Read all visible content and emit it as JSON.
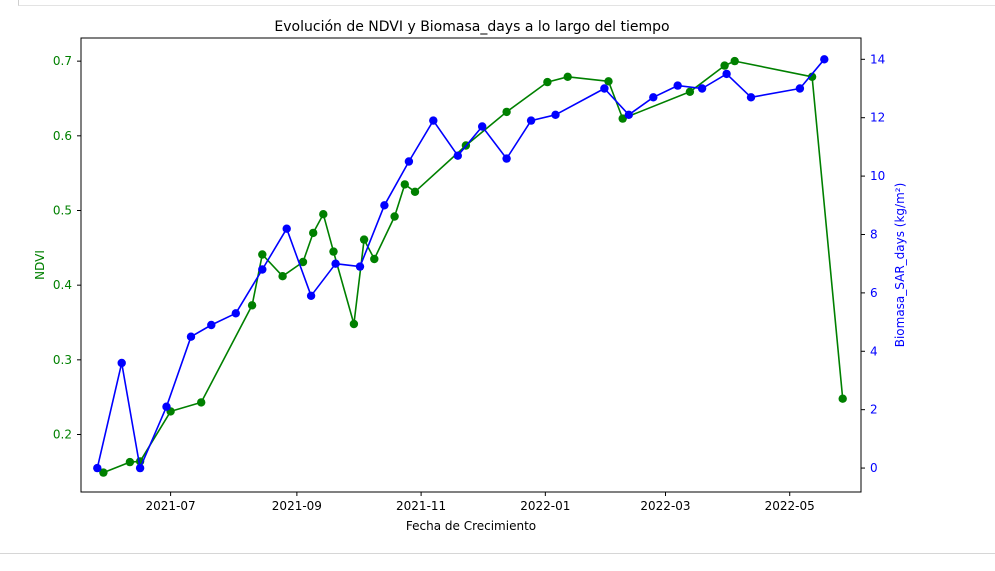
{
  "chart_data": {
    "type": "line",
    "title": "Evolución de NDVI y Biomasa_days a lo largo del tiempo",
    "xlabel": "Fecha de Crecimiento",
    "ylabel_left": "NDVI",
    "ylabel_right": "Biomasa_SAR_days (kg/m²)",
    "x_ticks": [
      "2021-07",
      "2021-09",
      "2021-11",
      "2022-01",
      "2022-03",
      "2022-05"
    ],
    "x_tick_dates": [
      "2021-07-01",
      "2021-09-01",
      "2021-11-01",
      "2022-01-01",
      "2022-03-01",
      "2022-05-01"
    ],
    "xlim": [
      "2021-05-18",
      "2022-06-05"
    ],
    "y_left_ticks": [
      "0.2",
      "0.3",
      "0.4",
      "0.5",
      "0.6",
      "0.7"
    ],
    "y_left_tick_values": [
      0.2,
      0.3,
      0.4,
      0.5,
      0.6,
      0.7
    ],
    "ylim_left": [
      0.123,
      0.731
    ],
    "y_right_ticks": [
      "0",
      "2",
      "4",
      "6",
      "8",
      "10",
      "12",
      "14"
    ],
    "y_right_tick_values": [
      0,
      2,
      4,
      6,
      8,
      10,
      12,
      14
    ],
    "ylim_right": [
      -0.82,
      14.73
    ],
    "grid": false,
    "colors": {
      "ndvi": "#008000",
      "biomasa": "#0000ff",
      "axis": "#000000",
      "text": "#000000"
    },
    "series": [
      {
        "axis": "left",
        "color": "#008000",
        "x": [
          "2021-05-29",
          "2021-06-11",
          "2021-06-16",
          "2021-07-01",
          "2021-07-16",
          "2021-08-10",
          "2021-08-15",
          "2021-08-25",
          "2021-09-04",
          "2021-09-09",
          "2021-09-14",
          "2021-09-19",
          "2021-09-29",
          "2021-10-04",
          "2021-10-09",
          "2021-10-19",
          "2021-10-24",
          "2021-10-29",
          "2021-11-23",
          "2021-12-13",
          "2022-01-02",
          "2022-01-12",
          "2022-02-01",
          "2022-02-08",
          "2022-03-13",
          "2022-03-30",
          "2022-04-04",
          "2022-05-12",
          "2022-05-27"
        ],
        "values": [
          0.149,
          0.163,
          0.164,
          0.231,
          0.243,
          0.373,
          0.441,
          0.412,
          0.431,
          0.47,
          0.495,
          0.445,
          0.348,
          0.461,
          0.435,
          0.492,
          0.535,
          0.525,
          0.587,
          0.632,
          0.672,
          0.679,
          0.673,
          0.623,
          0.659,
          0.694,
          0.7,
          0.679,
          0.248
        ]
      },
      {
        "axis": "right",
        "color": "#0000ff",
        "x": [
          "2021-05-26",
          "2021-06-07",
          "2021-06-16",
          "2021-06-29",
          "2021-07-11",
          "2021-07-21",
          "2021-08-02",
          "2021-08-15",
          "2021-08-27",
          "2021-09-08",
          "2021-09-20",
          "2021-10-02",
          "2021-10-14",
          "2021-10-26",
          "2021-11-07",
          "2021-11-19",
          "2021-12-01",
          "2021-12-13",
          "2021-12-25",
          "2022-01-06",
          "2022-01-30",
          "2022-02-11",
          "2022-02-23",
          "2022-03-07",
          "2022-03-19",
          "2022-03-31",
          "2022-04-12",
          "2022-05-06",
          "2022-05-18"
        ],
        "values": [
          0.0,
          3.6,
          0.0,
          2.1,
          4.5,
          4.9,
          5.3,
          6.8,
          8.2,
          5.9,
          7.0,
          6.9,
          9.0,
          10.5,
          11.9,
          10.7,
          11.7,
          10.6,
          11.9,
          12.1,
          13.0,
          12.1,
          12.7,
          13.1,
          13.0,
          13.5,
          12.7,
          13.0,
          14.0
        ]
      }
    ]
  }
}
